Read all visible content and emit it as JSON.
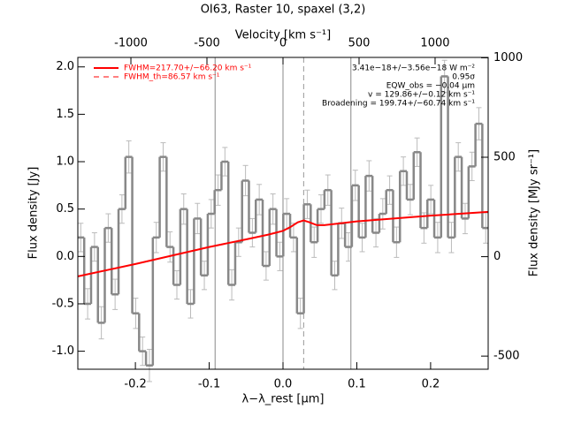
{
  "chart_data": {
    "type": "step",
    "title": "OI63, Raster 10, spaxel (3,2)",
    "xlabel": "λ−λ_rest [µm]",
    "ylabel": "Flux density [Jy]",
    "x2label": "Velocity [km s⁻¹]",
    "y2label": "Flux density [MJy sr⁻¹]",
    "xlim": [
      -0.278,
      0.278
    ],
    "ylim": [
      -1.19,
      2.1
    ],
    "x2lim": [
      -1349,
      1349
    ],
    "y2lim": [
      -566,
      1002
    ],
    "xticks": [
      -0.2,
      -0.1,
      {
        "value": 0,
        "label": "0.0"
      },
      0.1,
      0.2
    ],
    "yticks": [
      {
        "value": -1,
        "label": "-1.0"
      },
      -0.5,
      {
        "value": 0,
        "label": "0.0"
      },
      0.5,
      {
        "value": 1,
        "label": "1.0"
      },
      1.5,
      {
        "value": 2,
        "label": "2.0"
      }
    ],
    "x2ticks": [
      -1000,
      -500,
      0,
      500,
      1000
    ],
    "y2ticks": [
      -500,
      0,
      500,
      1000
    ],
    "vlines": [
      -0.092,
      0,
      0.092
    ],
    "dashed_vline": 0.028,
    "annotations": [
      "3.41e−18+/−3.56e−18 W m⁻²",
      "0.95σ",
      "EQW_obs = −0.04 µm",
      "v = 129.86+/−0.12 km s⁻¹",
      "Broadening = 199.74+/−60.74 km s⁻¹"
    ],
    "legend": [
      "FWHM=217.70+/−66.20 km s⁻¹",
      "FWHM_th=86.57 km s⁻¹"
    ],
    "data": {
      "color": "#888888",
      "x": [
        -0.274,
        -0.2647,
        -0.2554,
        -0.2461,
        -0.2368,
        -0.2275,
        -0.2182,
        -0.2089,
        -0.1996,
        -0.1903,
        -0.181,
        -0.1717,
        -0.1624,
        -0.1531,
        -0.1438,
        -0.1345,
        -0.1252,
        -0.1159,
        -0.1066,
        -0.0973,
        -0.088,
        -0.0787,
        -0.0694,
        -0.0601,
        -0.0508,
        -0.0415,
        -0.0322,
        -0.0229,
        -0.0136,
        -0.0043,
        0.005,
        0.0143,
        0.0236,
        0.0329,
        0.0422,
        0.0515,
        0.0608,
        0.0701,
        0.0794,
        0.0887,
        0.098,
        0.1073,
        0.1166,
        0.1259,
        0.1352,
        0.1445,
        0.1538,
        0.1631,
        0.1724,
        0.1817,
        0.191,
        0.2003,
        0.2096,
        0.2189,
        0.2282,
        0.2375,
        0.2468,
        0.2561,
        0.2654,
        0.2747
      ],
      "values": [
        0.2,
        -0.5,
        0.1,
        -0.7,
        0.3,
        -0.4,
        0.5,
        1.05,
        -0.6,
        -1.0,
        -1.15,
        0.2,
        1.05,
        0.1,
        -0.3,
        0.5,
        -0.5,
        0.4,
        -0.2,
        0.45,
        0.7,
        1.0,
        -0.3,
        0.15,
        0.8,
        0.25,
        0.6,
        -0.1,
        0.5,
        0.0,
        0.45,
        0.2,
        -0.6,
        0.55,
        0.15,
        0.5,
        0.7,
        -0.2,
        0.35,
        0.1,
        0.75,
        0.2,
        0.85,
        0.25,
        0.45,
        0.7,
        0.15,
        0.9,
        0.6,
        1.1,
        0.3,
        0.6,
        0.2,
        1.9,
        0.2,
        1.05,
        0.4,
        0.95,
        1.4,
        0.3
      ],
      "errors": [
        0.15,
        0.16,
        0.15,
        0.17,
        0.15,
        0.16,
        0.15,
        0.17,
        0.16,
        0.15,
        0.17,
        0.16,
        0.15,
        0.16,
        0.15,
        0.16,
        0.15,
        0.16,
        0.15,
        0.15,
        0.16,
        0.15,
        0.16,
        0.15,
        0.16,
        0.15,
        0.16,
        0.15,
        0.16,
        0.15,
        0.16,
        0.15,
        0.16,
        0.15,
        0.16,
        0.15,
        0.16,
        0.15,
        0.16,
        0.15,
        0.16,
        0.15,
        0.16,
        0.15,
        0.16,
        0.15,
        0.16,
        0.15,
        0.16,
        0.15,
        0.16,
        0.15,
        0.16,
        0.17,
        0.16,
        0.15,
        0.16,
        0.15,
        0.17,
        0.16
      ]
    },
    "fit": {
      "color": "#ff0000",
      "x": [
        -0.278,
        -0.2,
        -0.1,
        -0.05,
        -0.02,
        -0.01,
        0,
        0.01,
        0.02,
        0.028,
        0.036,
        0.046,
        0.056,
        0.1,
        0.2,
        0.278
      ],
      "values": [
        -0.21,
        -0.08,
        0.1,
        0.18,
        0.23,
        0.25,
        0.27,
        0.31,
        0.36,
        0.38,
        0.36,
        0.33,
        0.33,
        0.37,
        0.43,
        0.47
      ]
    }
  }
}
